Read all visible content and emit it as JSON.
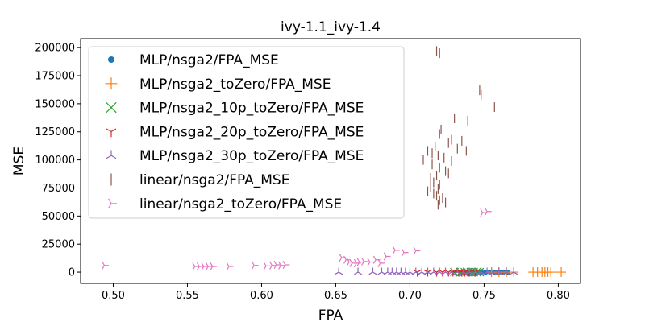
{
  "chart_data": {
    "type": "scatter",
    "title": "ivy-1.1_ivy-1.4",
    "xlabel": "FPA",
    "ylabel": "MSE",
    "xlim": [
      0.478,
      0.815
    ],
    "ylim": [
      -10000,
      208000
    ],
    "xticks": [
      0.5,
      0.55,
      0.6,
      0.65,
      0.7,
      0.75,
      0.8
    ],
    "xtick_labels": [
      "0.50",
      "0.55",
      "0.60",
      "0.65",
      "0.70",
      "0.75",
      "0.80"
    ],
    "yticks": [
      0,
      25000,
      50000,
      75000,
      100000,
      125000,
      150000,
      175000,
      200000
    ],
    "ytick_labels": [
      "0",
      "25000",
      "50000",
      "75000",
      "100000",
      "125000",
      "150000",
      "175000",
      "200000"
    ],
    "grid": false,
    "legend_position": "upper-left",
    "series": [
      {
        "name": "MLP/nsga2/FPA_MSE",
        "marker": "dot",
        "color": "#1f77b4",
        "points": [
          [
            0.735,
            0
          ],
          [
            0.738,
            0
          ],
          [
            0.742,
            0
          ],
          [
            0.745,
            0
          ],
          [
            0.748,
            0
          ],
          [
            0.751,
            0
          ],
          [
            0.754,
            0
          ],
          [
            0.757,
            0
          ],
          [
            0.76,
            0
          ],
          [
            0.763,
            0
          ],
          [
            0.766,
            0
          ]
        ]
      },
      {
        "name": "MLP/nsga2_toZero/FPA_MSE",
        "marker": "plus",
        "color": "#ff7f0e",
        "points": [
          [
            0.755,
            0
          ],
          [
            0.76,
            0
          ],
          [
            0.765,
            0
          ],
          [
            0.77,
            0
          ],
          [
            0.783,
            0
          ],
          [
            0.786,
            0
          ],
          [
            0.789,
            0
          ],
          [
            0.791,
            0
          ],
          [
            0.793,
            0
          ],
          [
            0.795,
            0
          ],
          [
            0.802,
            0
          ]
        ]
      },
      {
        "name": "MLP/nsga2_10p_toZero/FPA_MSE",
        "marker": "x",
        "color": "#2ca02c",
        "points": [
          [
            0.73,
            0
          ],
          [
            0.734,
            0
          ],
          [
            0.737,
            0
          ],
          [
            0.739,
            0
          ],
          [
            0.741,
            0
          ],
          [
            0.743,
            0
          ],
          [
            0.745,
            0
          ],
          [
            0.747,
            0
          ]
        ]
      },
      {
        "name": "MLP/nsga2_20p_toZero/FPA_MSE",
        "marker": "tri_down",
        "color": "#d62728",
        "points": [
          [
            0.705,
            0
          ],
          [
            0.712,
            0
          ],
          [
            0.718,
            0
          ],
          [
            0.722,
            0
          ],
          [
            0.726,
            0
          ],
          [
            0.729,
            0
          ],
          [
            0.731,
            0
          ],
          [
            0.733,
            0
          ],
          [
            0.735,
            0
          ],
          [
            0.737,
            0
          ],
          [
            0.74,
            0
          ],
          [
            0.744,
            0
          ]
        ]
      },
      {
        "name": "MLP/nsga2_30p_toZero/FPA_MSE",
        "marker": "tri_up",
        "color": "#9467bd",
        "points": [
          [
            0.652,
            0
          ],
          [
            0.665,
            0
          ],
          [
            0.675,
            0
          ],
          [
            0.681,
            0
          ],
          [
            0.685,
            0
          ],
          [
            0.688,
            0
          ],
          [
            0.691,
            0
          ],
          [
            0.694,
            0
          ],
          [
            0.697,
            0
          ],
          [
            0.7,
            0
          ],
          [
            0.704,
            0
          ],
          [
            0.708,
            0
          ],
          [
            0.712,
            0
          ],
          [
            0.716,
            0
          ],
          [
            0.72,
            0
          ],
          [
            0.724,
            0
          ],
          [
            0.728,
            0
          ],
          [
            0.732,
            0
          ],
          [
            0.736,
            0
          ],
          [
            0.74,
            0
          ],
          [
            0.744,
            0
          ],
          [
            0.748,
            0
          ],
          [
            0.752,
            0
          ],
          [
            0.756,
            0
          ],
          [
            0.76,
            0
          ],
          [
            0.765,
            0
          ],
          [
            0.77,
            0
          ]
        ]
      },
      {
        "name": "linear/nsga2/FPA_MSE",
        "marker": "vline",
        "color": "#8c564b",
        "points": [
          [
            0.718,
            197000
          ],
          [
            0.72,
            195000
          ],
          [
            0.747,
            162000
          ],
          [
            0.748,
            158000
          ],
          [
            0.757,
            147000
          ],
          [
            0.73,
            137000
          ],
          [
            0.739,
            135000
          ],
          [
            0.721,
            127000
          ],
          [
            0.72,
            123000
          ],
          [
            0.728,
            118000
          ],
          [
            0.735,
            117000
          ],
          [
            0.726,
            115000
          ],
          [
            0.717,
            112000
          ],
          [
            0.732,
            110000
          ],
          [
            0.738,
            108000
          ],
          [
            0.712,
            108000
          ],
          [
            0.715,
            106000
          ],
          [
            0.719,
            104000
          ],
          [
            0.723,
            102000
          ],
          [
            0.709,
            100000
          ],
          [
            0.728,
            99000
          ],
          [
            0.715,
            96000
          ],
          [
            0.72,
            93000
          ],
          [
            0.724,
            90000
          ],
          [
            0.726,
            88000
          ],
          [
            0.718,
            86000
          ],
          [
            0.714,
            84000
          ],
          [
            0.716,
            80000
          ],
          [
            0.72,
            78000
          ],
          [
            0.714,
            76000
          ],
          [
            0.719,
            74000
          ],
          [
            0.712,
            72000
          ],
          [
            0.716,
            70000
          ],
          [
            0.718,
            68000
          ],
          [
            0.722,
            66000
          ],
          [
            0.72,
            64000
          ],
          [
            0.724,
            62000
          ],
          [
            0.719,
            60000
          ]
        ]
      },
      {
        "name": "linear/nsga2_toZero/FPA_MSE",
        "marker": "tri_left",
        "color": "#e377c2",
        "points": [
          [
            0.494,
            6000
          ],
          [
            0.555,
            5000
          ],
          [
            0.558,
            5000
          ],
          [
            0.561,
            5000
          ],
          [
            0.564,
            5000
          ],
          [
            0.567,
            5000
          ],
          [
            0.578,
            5000
          ],
          [
            0.595,
            6000
          ],
          [
            0.603,
            5500
          ],
          [
            0.607,
            6000
          ],
          [
            0.61,
            6500
          ],
          [
            0.613,
            6000
          ],
          [
            0.616,
            6500
          ],
          [
            0.654,
            13000
          ],
          [
            0.657,
            11000
          ],
          [
            0.659,
            9000
          ],
          [
            0.661,
            8000
          ],
          [
            0.664,
            8000
          ],
          [
            0.666,
            9000
          ],
          [
            0.669,
            9500
          ],
          [
            0.673,
            9000
          ],
          [
            0.677,
            11000
          ],
          [
            0.68,
            8000
          ],
          [
            0.684,
            14000
          ],
          [
            0.69,
            19500
          ],
          [
            0.696,
            17500
          ],
          [
            0.704,
            19000
          ],
          [
            0.749,
            53000
          ],
          [
            0.752,
            54000
          ]
        ]
      }
    ]
  }
}
